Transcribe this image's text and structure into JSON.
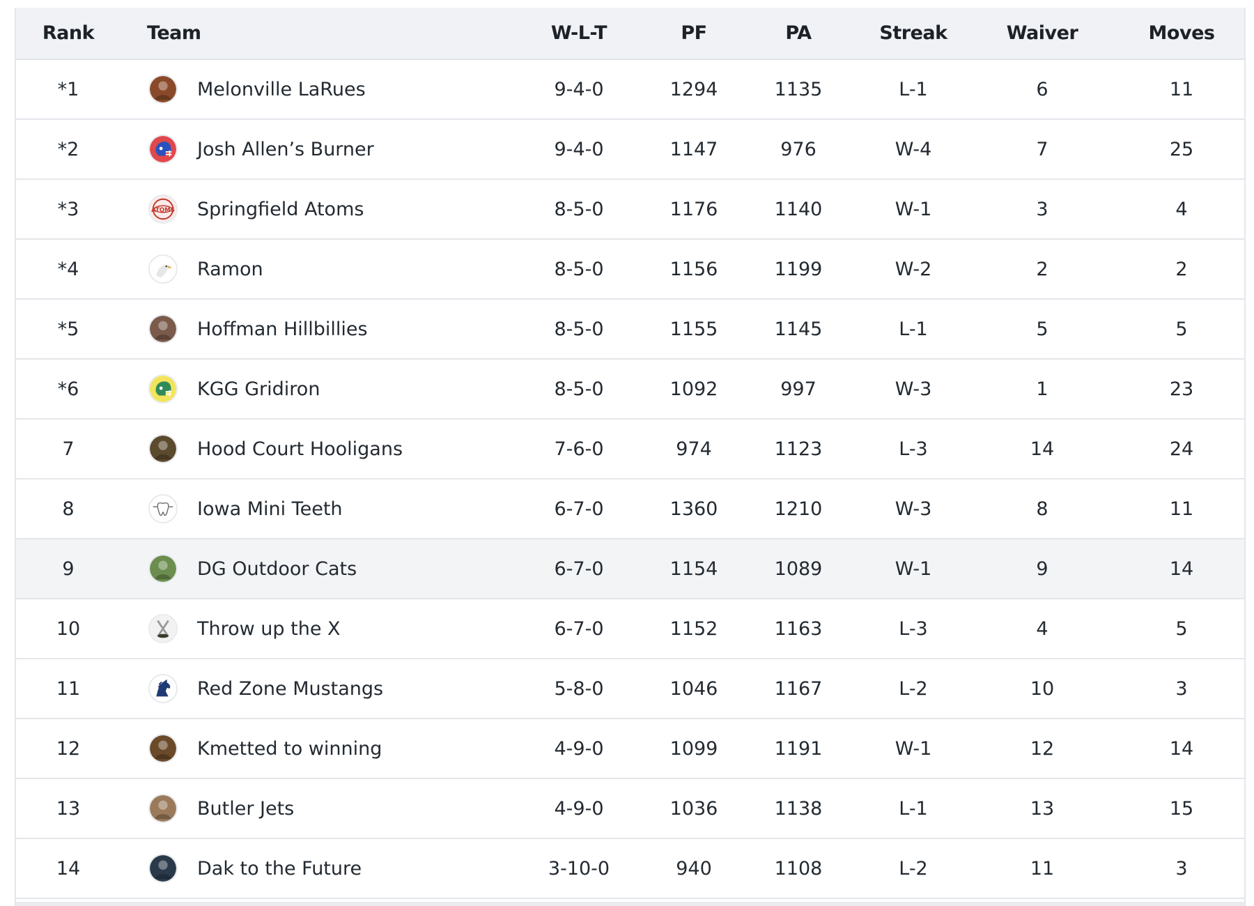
{
  "columns": {
    "rank": "Rank",
    "team": "Team",
    "wlt": "W-L-T",
    "pf": "PF",
    "pa": "PA",
    "streak": "Streak",
    "waiver": "Waiver",
    "moves": "Moves"
  },
  "rows": [
    {
      "rank": "*1",
      "team": "Melonville LaRues",
      "wlt": "9-4-0",
      "pf": "1294",
      "pa": "1135",
      "streak": "L-1",
      "waiver": "6",
      "moves": "11",
      "avatar": "man-portrait-avatar",
      "color": "#8a4a2a"
    },
    {
      "rank": "*2",
      "team": "Josh Allen’s Burner",
      "wlt": "9-4-0",
      "pf": "1147",
      "pa": "976",
      "streak": "W-4",
      "waiver": "7",
      "moves": "25",
      "avatar": "football-helmet-avatar",
      "color": "#2a52be"
    },
    {
      "rank": "*3",
      "team": "Springfield Atoms",
      "wlt": "8-5-0",
      "pf": "1176",
      "pa": "1140",
      "streak": "W-1",
      "waiver": "3",
      "moves": "4",
      "avatar": "atoms-logo-avatar",
      "color": "#c0392b"
    },
    {
      "rank": "*4",
      "team": "Ramon",
      "wlt": "8-5-0",
      "pf": "1156",
      "pa": "1199",
      "streak": "W-2",
      "waiver": "2",
      "moves": "2",
      "avatar": "eagle-avatar",
      "color": "#d8d8d8"
    },
    {
      "rank": "*5",
      "team": "Hoffman Hillbillies",
      "wlt": "8-5-0",
      "pf": "1155",
      "pa": "1145",
      "streak": "L-1",
      "waiver": "5",
      "moves": "5",
      "avatar": "person-photo-avatar",
      "color": "#7a5a4a"
    },
    {
      "rank": "*6",
      "team": "KGG Gridiron",
      "wlt": "8-5-0",
      "pf": "1092",
      "pa": "997",
      "streak": "W-3",
      "waiver": "1",
      "moves": "23",
      "avatar": "football-helmet-avatar",
      "color": "#2e8b57"
    },
    {
      "rank": "7",
      "team": "Hood Court Hooligans",
      "wlt": "7-6-0",
      "pf": "974",
      "pa": "1123",
      "streak": "L-3",
      "waiver": "14",
      "moves": "24",
      "avatar": "creature-avatar",
      "color": "#5c4a2e"
    },
    {
      "rank": "8",
      "team": "Iowa Mini Teeth",
      "wlt": "6-7-0",
      "pf": "1360",
      "pa": "1210",
      "streak": "W-3",
      "waiver": "8",
      "moves": "11",
      "avatar": "tooth-avatar",
      "color": "#ffffff"
    },
    {
      "rank": "9",
      "team": "DG Outdoor Cats",
      "wlt": "6-7-0",
      "pf": "1154",
      "pa": "1089",
      "streak": "W-1",
      "waiver": "9",
      "moves": "14",
      "avatar": "cat-photo-avatar",
      "color": "#6b8e4e"
    },
    {
      "rank": "10",
      "team": "Throw up the X",
      "wlt": "6-7-0",
      "pf": "1152",
      "pa": "1163",
      "streak": "L-3",
      "waiver": "4",
      "moves": "5",
      "avatar": "x-logo-avatar",
      "color": "#e8e8e8"
    },
    {
      "rank": "11",
      "team": "Red Zone Mustangs",
      "wlt": "5-8-0",
      "pf": "1046",
      "pa": "1167",
      "streak": "L-2",
      "waiver": "10",
      "moves": "3",
      "avatar": "mustang-avatar",
      "color": "#1f3b73"
    },
    {
      "rank": "12",
      "team": "Kmetted to winning",
      "wlt": "4-9-0",
      "pf": "1099",
      "pa": "1191",
      "streak": "W-1",
      "waiver": "12",
      "moves": "14",
      "avatar": "photo-avatar",
      "color": "#6b4a2a"
    },
    {
      "rank": "13",
      "team": "Butler Jets",
      "wlt": "4-9-0",
      "pf": "1036",
      "pa": "1138",
      "streak": "L-1",
      "waiver": "13",
      "moves": "15",
      "avatar": "people-photo-avatar",
      "color": "#9a7a5a"
    },
    {
      "rank": "14",
      "team": "Dak to the Future",
      "wlt": "3-10-0",
      "pf": "940",
      "pa": "1108",
      "streak": "L-2",
      "waiver": "11",
      "moves": "3",
      "avatar": "stadium-photo-avatar",
      "color": "#2a3a4a"
    }
  ],
  "highlighted_row": "9"
}
